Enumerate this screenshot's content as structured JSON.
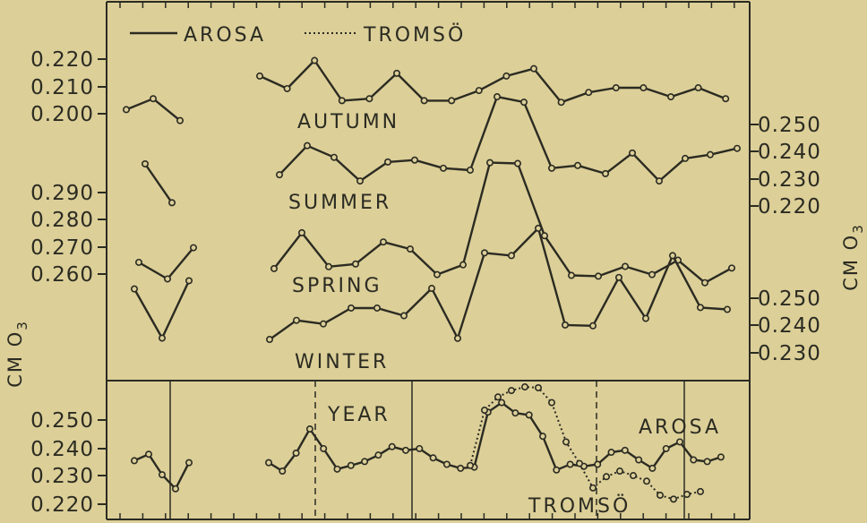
{
  "colors": {
    "paper": "#dccf98",
    "ink": "#2b2b22"
  },
  "chart_data": {
    "type": "line",
    "legend": [
      {
        "label": "AROSA",
        "style": "solid"
      },
      {
        "label": "TROMSÖ",
        "style": "dotted"
      }
    ],
    "axis_titles": {
      "left": "CM O3",
      "right": "CM O3"
    },
    "panels": [
      {
        "name": "AUTUMN",
        "axis": "left",
        "ticks": [
          "0.220",
          "0.210",
          "0.200"
        ],
        "series": [
          {
            "name": "AROSA",
            "style": "solid",
            "segments": [
              [
                0.2015,
                0.2055,
                0.1975
              ],
              [
                0.2138,
                0.2092,
                0.2195,
                0.2048,
                0.2055,
                0.2148,
                0.2048,
                0.2048,
                0.2085,
                0.2138,
                0.2165,
                0.2042,
                0.2078,
                0.2095,
                0.2095,
                0.2062,
                0.2095,
                0.2055
              ]
            ]
          }
        ]
      },
      {
        "name": "SUMMER",
        "axis": "right",
        "ticks": [
          "0.250",
          "0.240",
          "0.230",
          "0.220"
        ],
        "series": [
          {
            "name": "AROSA",
            "style": "solid",
            "segments": [
              [
                0.2355,
                0.2212
              ],
              [
                0.2315,
                0.2422,
                0.2379,
                0.2292,
                0.2362,
                0.2369,
                0.2339,
                0.2332,
                0.2602,
                0.2582,
                0.2339,
                0.2349,
                0.2319,
                0.2395,
                0.2292,
                0.2375,
                0.2389,
                0.2412
              ]
            ]
          }
        ]
      },
      {
        "name": "SPRING",
        "axis": "left",
        "ticks": [
          "0.290",
          "0.280",
          "0.270",
          "0.260"
        ],
        "series": [
          {
            "name": "AROSA",
            "style": "solid",
            "segments": [
              [
                0.2643,
                0.2582,
                0.2697
              ],
              [
                0.262,
                0.2752,
                0.2627,
                0.2637,
                0.2718,
                0.2692,
                0.2598,
                0.2634,
                0.301,
                0.3007,
                0.2741,
                0.2595,
                0.2592,
                0.2628,
                0.2598,
                0.2651,
                0.2568,
                0.2622
              ]
            ]
          }
        ]
      },
      {
        "name": "WINTER",
        "axis": "right",
        "ticks": [
          "0.250",
          "0.240",
          "0.230"
        ],
        "series": [
          {
            "name": "AROSA",
            "style": "solid",
            "segments": [
              [
                0.2534,
                0.2354,
                0.2564
              ],
              [
                0.2349,
                0.2419,
                0.2406,
                0.2464,
                0.2464,
                0.2436,
                0.2536,
                0.2353,
                0.2666,
                0.2656,
                0.2756,
                0.2402,
                0.2399,
                0.2576,
                0.2426,
                0.2656,
                0.2466,
                0.2459
              ]
            ]
          }
        ]
      },
      {
        "name": "YEAR",
        "axis": "left",
        "ticks": [
          "0.250",
          "0.240",
          "0.230",
          "0.220"
        ],
        "annotations": [
          "AROSA",
          "TROMSÖ"
        ],
        "series": [
          {
            "name": "AROSA",
            "style": "solid",
            "segments": [
              [
                0.2355,
                0.2378,
                0.2305,
                0.2255,
                0.2348
              ],
              [
                0.2348,
                0.2318,
                0.2382,
                0.2468,
                0.2398,
                0.2325,
                0.2338,
                0.2352,
                0.2375,
                0.2405,
                0.2392,
                0.2398,
                0.2365,
                0.2342,
                0.2328,
                0.2332,
                0.2528,
                0.2562,
                0.2525,
                0.2518,
                0.2442,
                0.2322,
                0.2342,
                0.2335,
                0.2342,
                0.2385,
                0.2392,
                0.2358,
                0.2328,
                0.2398,
                0.2422,
                0.2358,
                0.2352,
                0.2368
              ]
            ]
          },
          {
            "name": "TROMSÖ",
            "style": "dotted",
            "segments": [
              [
                0.2338,
                0.2535,
                0.2582,
                0.2605,
                0.2618,
                0.2615,
                0.2562,
                0.2422,
                0.2345,
                0.2258,
                0.2298,
                0.2318,
                0.2302,
                0.2282,
                0.2232,
                0.2218,
                0.2235,
                0.2245
              ]
            ]
          }
        ]
      }
    ]
  }
}
